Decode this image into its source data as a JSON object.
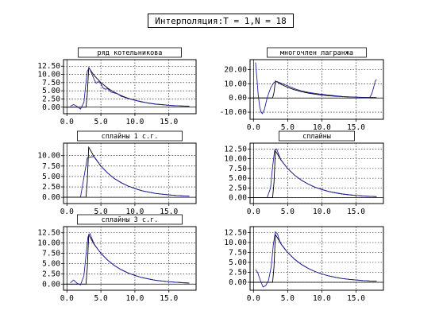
{
  "page": {
    "title": "Интерполяция:T = 1,N = 18"
  },
  "colors": {
    "curve": "#2020a0",
    "original": "#000000",
    "grid": "#000000",
    "frame": "#000000"
  },
  "chart_data": [
    {
      "type": "line",
      "title": "ряд котельникова",
      "xlim": [
        -0.5,
        19
      ],
      "ylim": [
        -2,
        14.5
      ],
      "xticks": [
        0,
        5,
        10,
        15
      ],
      "xticklabels": [
        "0.0",
        "5.0",
        "10.0",
        "15.0"
      ],
      "yticks": [
        0,
        2.5,
        5,
        7.5,
        10,
        12.5
      ],
      "yticklabels": [
        "0.00",
        "2.50",
        "5.00",
        "7.50",
        "10.00",
        "12.50"
      ],
      "grid": true,
      "series": [
        {
          "style": "original",
          "x": [
            -0.5,
            2.8,
            3.0,
            3.2,
            3.5,
            4,
            4.5,
            5,
            6,
            7,
            8,
            9,
            10,
            11,
            12,
            13,
            14,
            15,
            16,
            17,
            18
          ],
          "y": [
            0,
            0,
            4,
            12.0,
            11.2,
            9.7,
            8.6,
            7.5,
            5.8,
            4.5,
            3.5,
            2.7,
            2.1,
            1.6,
            1.25,
            0.95,
            0.75,
            0.58,
            0.45,
            0.35,
            0.27
          ]
        },
        {
          "style": "interp",
          "x": [
            0.5,
            1.0,
            1.5,
            2.0,
            2.5,
            2.8,
            3.0,
            3.3,
            3.6,
            4.0,
            4.3,
            4.6,
            5.0,
            5.3,
            5.6,
            6.0,
            6.5,
            7.0,
            7.5,
            8.0,
            8.5,
            9.0,
            10,
            11,
            12,
            13,
            14,
            15,
            16,
            17,
            18
          ],
          "y": [
            0.3,
            0.8,
            0.2,
            -0.6,
            1.5,
            7.5,
            11.0,
            12.0,
            10.5,
            8.5,
            7.3,
            7.8,
            7.2,
            5.9,
            5.5,
            5.6,
            4.6,
            4.3,
            4.0,
            3.3,
            3.0,
            2.6,
            2.1,
            1.7,
            1.2,
            0.9,
            0.8,
            0.55,
            0.45,
            0.35,
            0.25
          ]
        }
      ]
    },
    {
      "type": "line",
      "title": "многочлен лагранжа",
      "xlim": [
        -0.5,
        19
      ],
      "ylim": [
        -15,
        27
      ],
      "xticks": [
        0,
        5,
        10,
        15
      ],
      "xticklabels": [
        "0.0",
        "5.0",
        "10.0",
        "15.0"
      ],
      "yticks": [
        -10,
        0,
        10,
        20
      ],
      "yticklabels": [
        "-10.00",
        "0.00",
        "10.00",
        "20.00"
      ],
      "grid": true,
      "series": [
        {
          "style": "original",
          "x": [
            -0.5,
            2.8,
            3.0,
            3.2,
            3.5,
            4,
            4.5,
            5,
            6,
            7,
            8,
            9,
            10,
            11,
            12,
            13,
            14,
            15,
            16,
            17,
            18
          ],
          "y": [
            0,
            0,
            4,
            12.0,
            11.2,
            9.7,
            8.6,
            7.5,
            5.8,
            4.5,
            3.5,
            2.7,
            2.1,
            1.6,
            1.25,
            0.95,
            0.75,
            0.58,
            0.45,
            0.35,
            0.27
          ]
        },
        {
          "style": "interp",
          "x": [
            0.3,
            0.5,
            0.7,
            0.9,
            1.1,
            1.3,
            1.6,
            2.0,
            2.5,
            3.0,
            3.5,
            4,
            5,
            6,
            7,
            8,
            9,
            10,
            11,
            12,
            13,
            14,
            15,
            16,
            16.5,
            17,
            17.3,
            17.6,
            17.8,
            18
          ],
          "y": [
            25,
            14,
            2,
            -6,
            -10,
            -11,
            -8,
            0,
            7,
            11,
            11.5,
            10.5,
            8.5,
            6.5,
            5,
            4,
            3.2,
            2.6,
            2,
            1.5,
            1.1,
            0.8,
            0.5,
            0.2,
            0,
            0.5,
            3,
            8,
            12,
            13
          ]
        }
      ]
    },
    {
      "type": "line",
      "title": "сплайны 1 с.г.",
      "xlim": [
        -0.5,
        19
      ],
      "ylim": [
        -1.5,
        13
      ],
      "xticks": [
        0,
        5,
        10,
        15
      ],
      "xticklabels": [
        "0.0",
        "5.0",
        "10.0",
        "15.0"
      ],
      "yticks": [
        0,
        2.5,
        5,
        7.5,
        10
      ],
      "yticklabels": [
        "0.00",
        "2.50",
        "5.00",
        "7.50",
        "10.00"
      ],
      "grid": true,
      "series": [
        {
          "style": "original",
          "x": [
            -0.5,
            2.8,
            3.0,
            3.2,
            3.5,
            4,
            4.5,
            5,
            6,
            7,
            8,
            9,
            10,
            11,
            12,
            13,
            14,
            15,
            16,
            17,
            18
          ],
          "y": [
            0,
            0,
            4,
            12.0,
            11.2,
            9.7,
            8.6,
            7.5,
            5.8,
            4.5,
            3.5,
            2.7,
            2.1,
            1.6,
            1.25,
            0.95,
            0.75,
            0.58,
            0.45,
            0.35,
            0.27
          ]
        },
        {
          "style": "interp",
          "x": [
            2.0,
            3.0,
            4,
            5,
            6,
            7,
            8,
            9,
            10,
            11,
            12,
            13,
            14,
            15,
            16,
            17,
            18
          ],
          "y": [
            0,
            9.5,
            9.8,
            7.5,
            5.8,
            4.5,
            3.5,
            2.7,
            2.1,
            1.6,
            1.25,
            0.95,
            0.75,
            0.58,
            0.45,
            0.35,
            0.27
          ]
        }
      ]
    },
    {
      "type": "line",
      "title": "сплайны",
      "xlim": [
        -0.5,
        19
      ],
      "ylim": [
        -1.5,
        14
      ],
      "xticks": [
        0,
        5,
        10,
        15
      ],
      "xticklabels": [
        "0.0",
        "5.0",
        "10.0",
        "15.0"
      ],
      "yticks": [
        0,
        2.5,
        5,
        7.5,
        10,
        12.5
      ],
      "yticklabels": [
        "0.00",
        "2.50",
        "5.00",
        "7.50",
        "10.00",
        "12.50"
      ],
      "grid": true,
      "series": [
        {
          "style": "original",
          "x": [
            -0.5,
            2.8,
            3.0,
            3.2,
            3.5,
            4,
            4.5,
            5,
            6,
            7,
            8,
            9,
            10,
            11,
            12,
            13,
            14,
            15,
            16,
            17,
            18
          ],
          "y": [
            0,
            0,
            4,
            12.0,
            11.2,
            9.7,
            8.6,
            7.5,
            5.8,
            4.5,
            3.5,
            2.7,
            2.1,
            1.6,
            1.25,
            0.95,
            0.75,
            0.58,
            0.45,
            0.35,
            0.27
          ]
        },
        {
          "style": "interp",
          "x": [
            2.0,
            2.5,
            2.8,
            3.1,
            3.4,
            3.7,
            4,
            4.5,
            5,
            6,
            7,
            8,
            9,
            10,
            11,
            12,
            13,
            14,
            15,
            16,
            17,
            18
          ],
          "y": [
            0,
            2.5,
            8,
            12.2,
            12.5,
            11,
            9.8,
            8.6,
            7.5,
            5.8,
            4.5,
            3.5,
            2.7,
            2.1,
            1.6,
            1.25,
            0.95,
            0.75,
            0.58,
            0.45,
            0.35,
            0.27
          ]
        }
      ]
    },
    {
      "type": "line",
      "title": "сплайны 3 с.г.",
      "xlim": [
        -0.5,
        19
      ],
      "ylim": [
        -1.5,
        14
      ],
      "xticks": [
        0,
        5,
        10,
        15
      ],
      "xticklabels": [
        "0.0",
        "5.0",
        "10.0",
        "15.0"
      ],
      "yticks": [
        0,
        2.5,
        5,
        7.5,
        10,
        12.5
      ],
      "yticklabels": [
        "0.00",
        "2.50",
        "5.00",
        "7.50",
        "10.00",
        "12.50"
      ],
      "grid": true,
      "series": [
        {
          "style": "original",
          "x": [
            -0.5,
            2.8,
            3.0,
            3.2,
            3.5,
            4,
            4.5,
            5,
            6,
            7,
            8,
            9,
            10,
            11,
            12,
            13,
            14,
            15,
            16,
            17,
            18
          ],
          "y": [
            0,
            0,
            4,
            12.0,
            11.2,
            9.7,
            8.6,
            7.5,
            5.8,
            4.5,
            3.5,
            2.7,
            2.1,
            1.6,
            1.25,
            0.95,
            0.75,
            0.58,
            0.45,
            0.35,
            0.27
          ]
        },
        {
          "style": "interp",
          "x": [
            0.5,
            1.0,
            1.5,
            2.0,
            2.5,
            2.8,
            3.1,
            3.4,
            3.7,
            4,
            4.5,
            5,
            6,
            7,
            8,
            9,
            10,
            11,
            12,
            13,
            14,
            15,
            16,
            17,
            18
          ],
          "y": [
            0.3,
            1.0,
            0.2,
            -0.2,
            2,
            7,
            11.5,
            12.3,
            11,
            9.8,
            8.6,
            7.5,
            5.8,
            4.5,
            3.5,
            2.7,
            2.1,
            1.6,
            1.25,
            0.95,
            0.75,
            0.58,
            0.45,
            0.35,
            0.27
          ]
        }
      ]
    },
    {
      "type": "line",
      "title": "",
      "xlim": [
        -0.5,
        19
      ],
      "ylim": [
        -2,
        14
      ],
      "xticks": [
        0,
        5,
        10,
        15
      ],
      "xticklabels": [
        "0.0",
        "5.0",
        "10.0",
        "15.0"
      ],
      "yticks": [
        0,
        2.5,
        5,
        7.5,
        10,
        12.5
      ],
      "yticklabels": [
        "0.00",
        "2.50",
        "5.00",
        "7.50",
        "10.00",
        "12.50"
      ],
      "grid": true,
      "series": [
        {
          "style": "original",
          "x": [
            -0.5,
            2.8,
            3.0,
            3.2,
            3.5,
            4,
            4.5,
            5,
            6,
            7,
            8,
            9,
            10,
            11,
            12,
            13,
            14,
            15,
            16,
            17,
            18
          ],
          "y": [
            0,
            0,
            4,
            12.0,
            11.2,
            9.7,
            8.6,
            7.5,
            5.8,
            4.5,
            3.5,
            2.7,
            2.1,
            1.6,
            1.25,
            0.95,
            0.75,
            0.58,
            0.45,
            0.35,
            0.27
          ]
        },
        {
          "style": "interp",
          "x": [
            0.3,
            0.6,
            1.0,
            1.4,
            1.8,
            2.2,
            2.6,
            2.9,
            3.2,
            3.5,
            3.8,
            4.2,
            4.6,
            5,
            6,
            7,
            8,
            9,
            10,
            11,
            12,
            13,
            14,
            15,
            16,
            17,
            18
          ],
          "y": [
            3.2,
            2.5,
            0.5,
            -1.2,
            -0.8,
            0.5,
            4,
            9.5,
            12.7,
            12.2,
            10.5,
            9.2,
            8.3,
            7.5,
            5.8,
            4.5,
            3.5,
            2.7,
            2.1,
            1.6,
            1.25,
            0.95,
            0.75,
            0.58,
            0.45,
            0.35,
            0.27
          ]
        }
      ]
    }
  ]
}
